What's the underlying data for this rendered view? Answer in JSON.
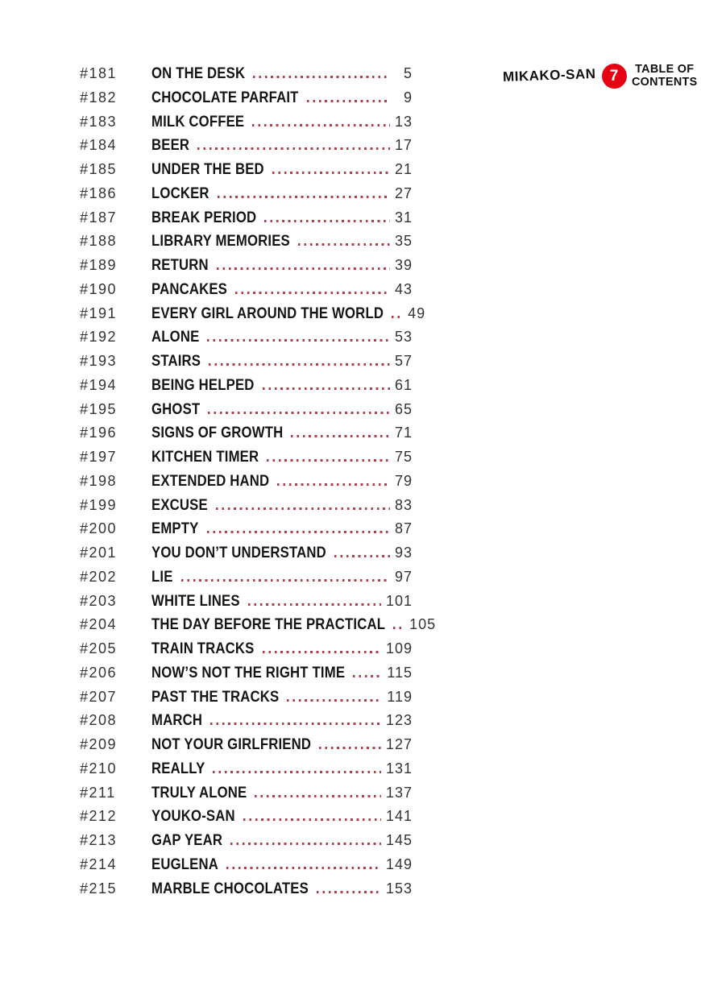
{
  "header": {
    "series_title": "MIKAKO-SAN",
    "volume_number": "7",
    "toc_label_line1": "TABLE OF",
    "toc_label_line2": "CONTENTS"
  },
  "colors": {
    "badge": "#e60012",
    "badge_text": "#ffffff",
    "header_text": "#111111",
    "title_text": "#151515",
    "number_text": "#333333",
    "dot_leader": "#ab3f4b"
  },
  "toc": {
    "entries": [
      {
        "chapter": "#181",
        "title": "ON THE DESK",
        "page": "5"
      },
      {
        "chapter": "#182",
        "title": "CHOCOLATE PARFAIT",
        "page": "9"
      },
      {
        "chapter": "#183",
        "title": "MILK COFFEE",
        "page": "13"
      },
      {
        "chapter": "#184",
        "title": "BEER",
        "page": "17"
      },
      {
        "chapter": "#185",
        "title": "UNDER THE BED",
        "page": "21"
      },
      {
        "chapter": "#186",
        "title": "LOCKER",
        "page": "27"
      },
      {
        "chapter": "#187",
        "title": "BREAK PERIOD",
        "page": "31"
      },
      {
        "chapter": "#188",
        "title": "LIBRARY MEMORIES",
        "page": "35"
      },
      {
        "chapter": "#189",
        "title": "RETURN",
        "page": "39"
      },
      {
        "chapter": "#190",
        "title": "PANCAKES",
        "page": "43"
      },
      {
        "chapter": "#191",
        "title": "EVERY GIRL AROUND THE WORLD",
        "page": "49"
      },
      {
        "chapter": "#192",
        "title": "ALONE",
        "page": "53"
      },
      {
        "chapter": "#193",
        "title": "STAIRS",
        "page": "57"
      },
      {
        "chapter": "#194",
        "title": "BEING HELPED",
        "page": "61"
      },
      {
        "chapter": "#195",
        "title": "GHOST",
        "page": "65"
      },
      {
        "chapter": "#196",
        "title": "SIGNS OF GROWTH",
        "page": "71"
      },
      {
        "chapter": "#197",
        "title": "KITCHEN TIMER",
        "page": "75"
      },
      {
        "chapter": "#198",
        "title": "EXTENDED HAND",
        "page": "79"
      },
      {
        "chapter": "#199",
        "title": "EXCUSE",
        "page": "83"
      },
      {
        "chapter": "#200",
        "title": "EMPTY",
        "page": "87"
      },
      {
        "chapter": "#201",
        "title": "YOU DON’T UNDERSTAND",
        "page": "93"
      },
      {
        "chapter": "#202",
        "title": "LIE",
        "page": "97"
      },
      {
        "chapter": "#203",
        "title": "WHITE LINES",
        "page": "101"
      },
      {
        "chapter": "#204",
        "title": "THE DAY BEFORE THE PRACTICAL",
        "page": "105"
      },
      {
        "chapter": "#205",
        "title": "TRAIN TRACKS",
        "page": "109"
      },
      {
        "chapter": "#206",
        "title": "NOW’S NOT THE RIGHT TIME",
        "page": "115"
      },
      {
        "chapter": "#207",
        "title": "PAST THE TRACKS",
        "page": "119"
      },
      {
        "chapter": "#208",
        "title": "MARCH",
        "page": "123"
      },
      {
        "chapter": "#209",
        "title": "NOT YOUR GIRLFRIEND",
        "page": "127"
      },
      {
        "chapter": "#210",
        "title": "REALLY",
        "page": "131"
      },
      {
        "chapter": "#211",
        "title": "TRULY ALONE",
        "page": "137"
      },
      {
        "chapter": "#212",
        "title": "YOUKO-SAN",
        "page": "141"
      },
      {
        "chapter": "#213",
        "title": "GAP YEAR",
        "page": "145"
      },
      {
        "chapter": "#214",
        "title": "EUGLENA",
        "page": "149"
      },
      {
        "chapter": "#215",
        "title": "MARBLE CHOCOLATES",
        "page": "153"
      }
    ]
  }
}
